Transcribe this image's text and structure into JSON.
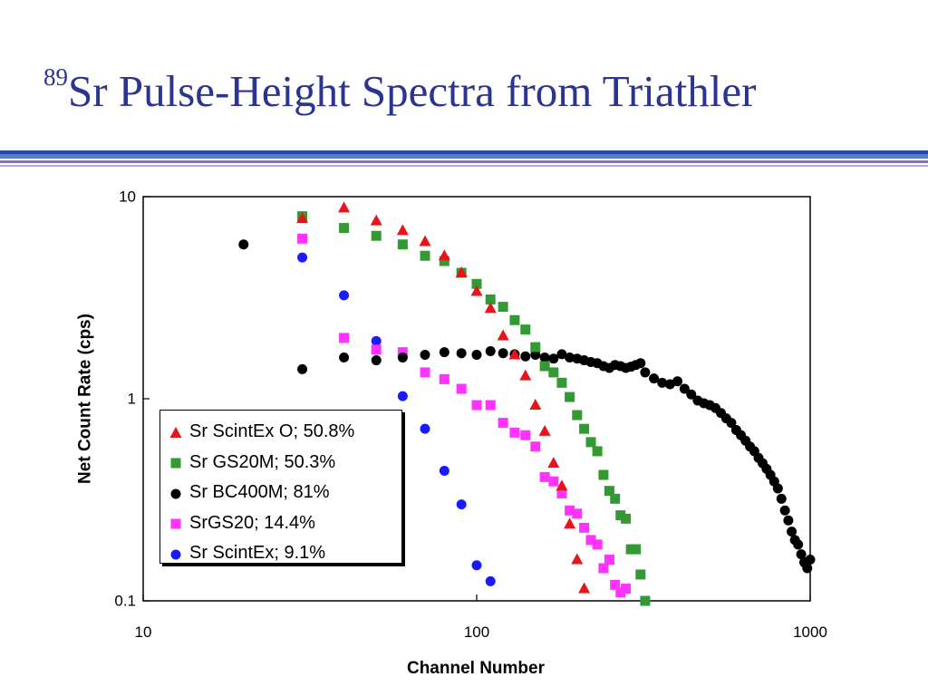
{
  "slide": {
    "title_sup": "89",
    "title": "Sr Pulse-Height Spectra from Triathler",
    "rule_colors": [
      "#1f4ea3",
      "#5a7cc8",
      "#8f6ad0",
      "#b9a5ea"
    ]
  },
  "chart_data": {
    "type": "scatter",
    "title": "",
    "xlabel": "Channel Number",
    "ylabel": "Net Count Rate (cps)",
    "xscale": "log",
    "yscale": "log",
    "xlim": [
      10,
      1000
    ],
    "ylim": [
      0.1,
      10
    ],
    "xticks": [
      "10",
      "100",
      "1000"
    ],
    "yticks": [
      "0.1",
      "1",
      "10"
    ],
    "grid": false,
    "legend_position": "lower-left",
    "series": [
      {
        "name": "Sr ScintEx O; 50.8%",
        "marker": "triangle",
        "color": "#e8141a",
        "points": [
          [
            30,
            7.8
          ],
          [
            40,
            8.8
          ],
          [
            50,
            7.6
          ],
          [
            60,
            6.8
          ],
          [
            70,
            6.0
          ],
          [
            80,
            5.1
          ],
          [
            90,
            4.2
          ],
          [
            100,
            3.4
          ],
          [
            110,
            2.8
          ],
          [
            120,
            2.05
          ],
          [
            130,
            1.65
          ],
          [
            140,
            1.3
          ],
          [
            150,
            0.93
          ],
          [
            160,
            0.69
          ],
          [
            170,
            0.48
          ],
          [
            180,
            0.37
          ],
          [
            190,
            0.24
          ],
          [
            200,
            0.16
          ],
          [
            210,
            0.115
          ]
        ]
      },
      {
        "name": "Sr GS20M; 50.3%",
        "marker": "square",
        "color": "#339933",
        "points": [
          [
            30,
            8.0
          ],
          [
            40,
            7.0
          ],
          [
            50,
            6.4
          ],
          [
            60,
            5.8
          ],
          [
            70,
            5.1
          ],
          [
            80,
            4.8
          ],
          [
            90,
            4.2
          ],
          [
            100,
            3.7
          ],
          [
            110,
            3.1
          ],
          [
            120,
            2.85
          ],
          [
            130,
            2.45
          ],
          [
            140,
            2.2
          ],
          [
            150,
            1.8
          ],
          [
            160,
            1.45
          ],
          [
            170,
            1.35
          ],
          [
            180,
            1.2
          ],
          [
            190,
            1.02
          ],
          [
            200,
            0.83
          ],
          [
            210,
            0.71
          ],
          [
            220,
            0.61
          ],
          [
            230,
            0.55
          ],
          [
            240,
            0.42
          ],
          [
            250,
            0.35
          ],
          [
            260,
            0.32
          ],
          [
            270,
            0.265
          ],
          [
            280,
            0.255
          ],
          [
            290,
            0.18
          ],
          [
            300,
            0.18
          ],
          [
            310,
            0.135
          ],
          [
            320,
            0.1
          ]
        ]
      },
      {
        "name": "Sr BC400M; 81%",
        "marker": "circle",
        "color": "#000000",
        "points": [
          [
            20,
            5.8
          ],
          [
            30,
            1.4
          ],
          [
            40,
            1.6
          ],
          [
            50,
            1.55
          ],
          [
            60,
            1.6
          ],
          [
            70,
            1.65
          ],
          [
            80,
            1.7
          ],
          [
            90,
            1.68
          ],
          [
            100,
            1.65
          ],
          [
            110,
            1.72
          ],
          [
            120,
            1.68
          ],
          [
            130,
            1.66
          ],
          [
            140,
            1.62
          ],
          [
            150,
            1.65
          ],
          [
            160,
            1.6
          ],
          [
            170,
            1.58
          ],
          [
            180,
            1.66
          ],
          [
            190,
            1.6
          ],
          [
            200,
            1.58
          ],
          [
            210,
            1.55
          ],
          [
            220,
            1.52
          ],
          [
            230,
            1.5
          ],
          [
            240,
            1.45
          ],
          [
            250,
            1.42
          ],
          [
            260,
            1.47
          ],
          [
            270,
            1.45
          ],
          [
            280,
            1.42
          ],
          [
            290,
            1.44
          ],
          [
            300,
            1.47
          ],
          [
            310,
            1.5
          ],
          [
            320,
            1.35
          ],
          [
            340,
            1.26
          ],
          [
            360,
            1.2
          ],
          [
            380,
            1.18
          ],
          [
            400,
            1.22
          ],
          [
            420,
            1.12
          ],
          [
            440,
            1.05
          ],
          [
            460,
            0.98
          ],
          [
            480,
            0.95
          ],
          [
            500,
            0.93
          ],
          [
            520,
            0.9
          ],
          [
            540,
            0.85
          ],
          [
            560,
            0.8
          ],
          [
            580,
            0.76
          ],
          [
            600,
            0.7
          ],
          [
            620,
            0.66
          ],
          [
            640,
            0.62
          ],
          [
            660,
            0.58
          ],
          [
            680,
            0.55
          ],
          [
            700,
            0.51
          ],
          [
            720,
            0.48
          ],
          [
            740,
            0.45
          ],
          [
            760,
            0.42
          ],
          [
            780,
            0.39
          ],
          [
            800,
            0.36
          ],
          [
            820,
            0.32
          ],
          [
            840,
            0.28
          ],
          [
            860,
            0.25
          ],
          [
            880,
            0.22
          ],
          [
            900,
            0.2
          ],
          [
            920,
            0.19
          ],
          [
            940,
            0.17
          ],
          [
            960,
            0.155
          ],
          [
            980,
            0.145
          ],
          [
            1000,
            0.16
          ]
        ]
      },
      {
        "name": "SrGS20; 14.4%",
        "marker": "square",
        "color": "#ff33ff",
        "points": [
          [
            30,
            6.2
          ],
          [
            40,
            2.0
          ],
          [
            50,
            1.75
          ],
          [
            60,
            1.7
          ],
          [
            70,
            1.35
          ],
          [
            80,
            1.25
          ],
          [
            90,
            1.12
          ],
          [
            100,
            0.93
          ],
          [
            110,
            0.93
          ],
          [
            120,
            0.76
          ],
          [
            130,
            0.68
          ],
          [
            140,
            0.66
          ],
          [
            150,
            0.58
          ],
          [
            160,
            0.41
          ],
          [
            170,
            0.39
          ],
          [
            180,
            0.34
          ],
          [
            190,
            0.28
          ],
          [
            200,
            0.27
          ],
          [
            210,
            0.23
          ],
          [
            220,
            0.2
          ],
          [
            230,
            0.19
          ],
          [
            240,
            0.145
          ],
          [
            250,
            0.16
          ],
          [
            260,
            0.12
          ],
          [
            270,
            0.11
          ],
          [
            280,
            0.115
          ]
        ]
      },
      {
        "name": "Sr ScintEx; 9.1%",
        "marker": "circle",
        "color": "#1a1aff",
        "points": [
          [
            30,
            5.0
          ],
          [
            40,
            3.25
          ],
          [
            50,
            1.93
          ],
          [
            60,
            1.03
          ],
          [
            70,
            0.71
          ],
          [
            80,
            0.44
          ],
          [
            90,
            0.3
          ],
          [
            100,
            0.15
          ],
          [
            110,
            0.125
          ]
        ]
      }
    ]
  }
}
